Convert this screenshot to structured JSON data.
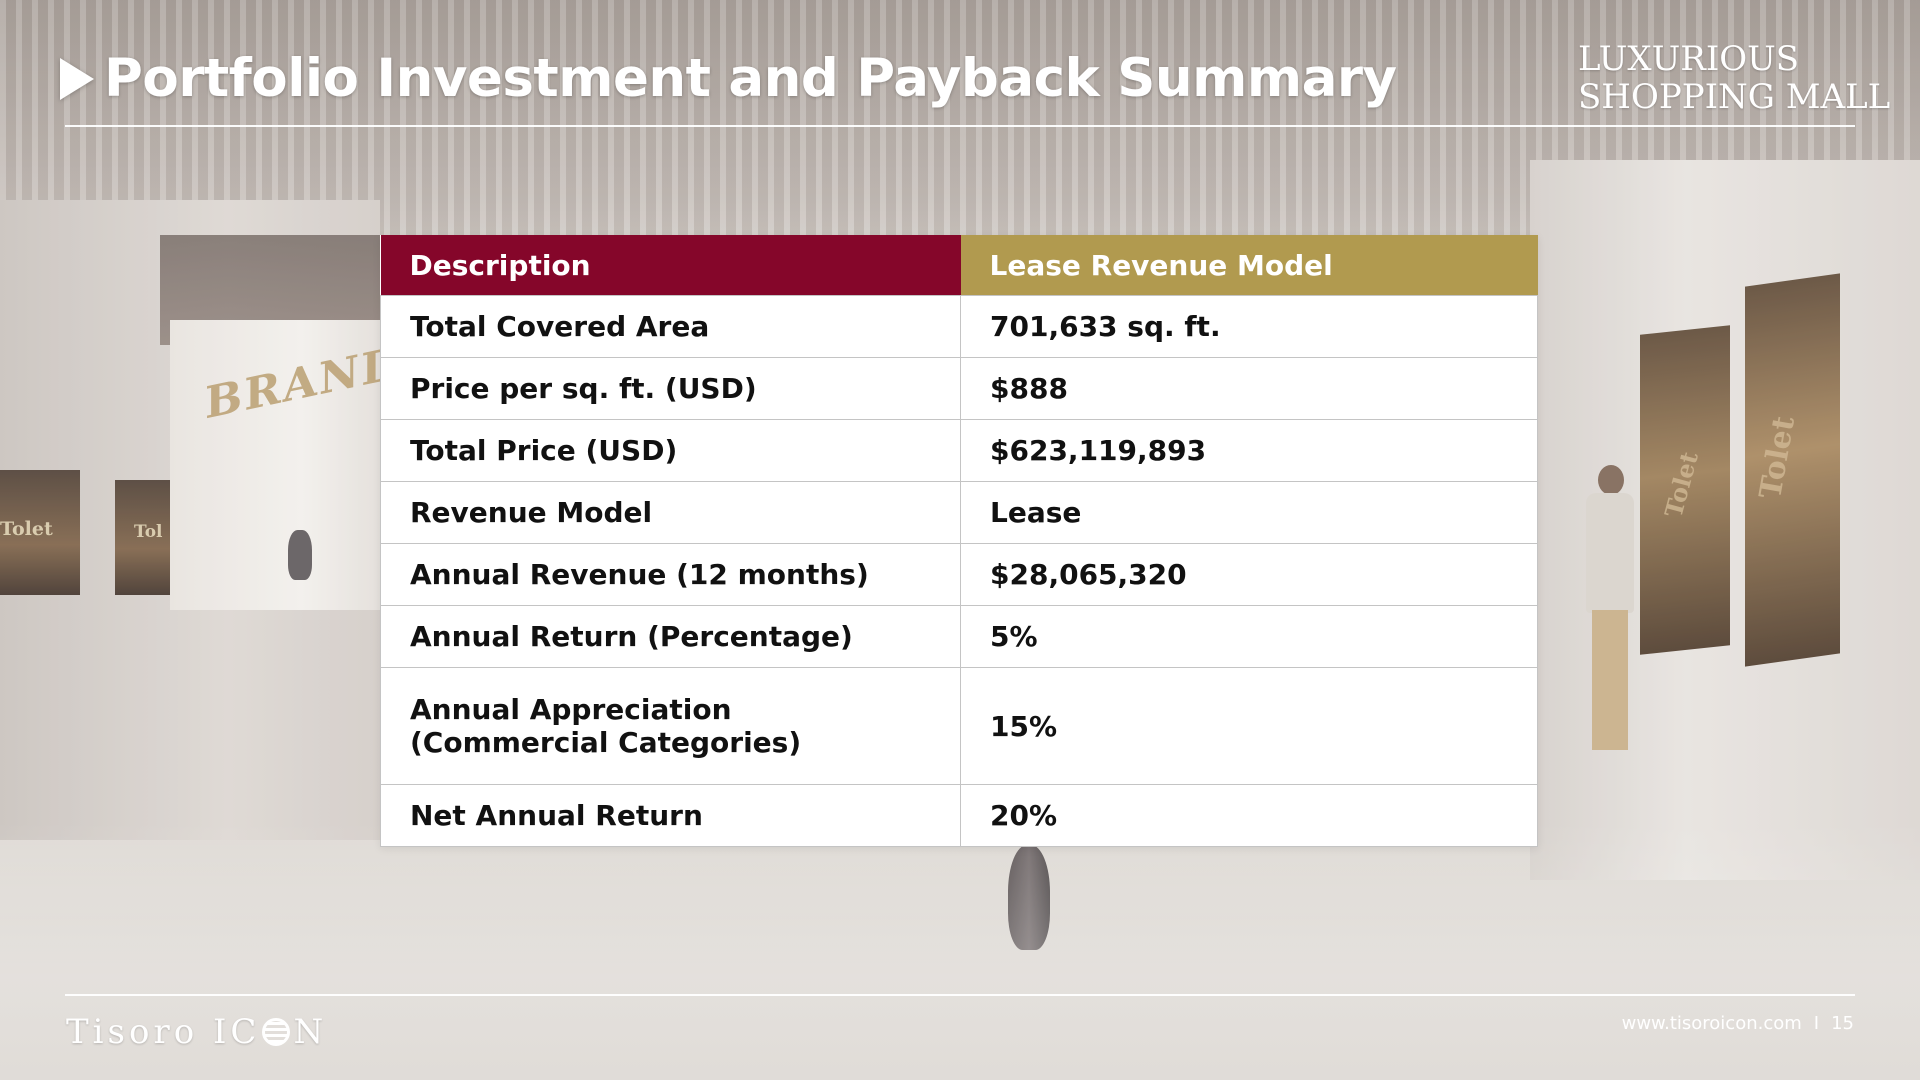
{
  "header": {
    "title": "Portfolio Investment and Payback Summary",
    "brand_line1": "LUXURIOUS",
    "brand_line2": "SHOPPING MALL"
  },
  "background_signage": {
    "brand_sign": "BRAND KIO",
    "tolet_left_1": "Tolet",
    "tolet_left_2": "Tol",
    "tolet_right_1": "Tolet",
    "tolet_right_2": "Tolet"
  },
  "table": {
    "headers": {
      "description": "Description",
      "model": "Lease Revenue Model"
    },
    "header_colors": {
      "description": "#85062a",
      "model": "#b19a4f"
    },
    "rows": [
      {
        "label": "Total Covered Area",
        "value": "701,633 sq. ft."
      },
      {
        "label": "Price per sq. ft. (USD)",
        "value": "$888"
      },
      {
        "label": "Total Price (USD)",
        "value": "$623,119,893"
      },
      {
        "label": "Revenue Model",
        "value": "Lease"
      },
      {
        "label": "Annual Revenue (12 months)",
        "value": "$28,065,320"
      },
      {
        "label": "Annual Return (Percentage)",
        "value": "5%"
      },
      {
        "label_line1": "Annual Appreciation",
        "label_line2": "(Commercial Categories)",
        "value": "15%"
      },
      {
        "label": "Net Annual Return",
        "value": "20%"
      }
    ]
  },
  "footer": {
    "logo_prefix": "Tisoro IC",
    "logo_suffix": "N",
    "website": "www.tisoroicon.com",
    "separator": "I",
    "page_number": "15"
  }
}
